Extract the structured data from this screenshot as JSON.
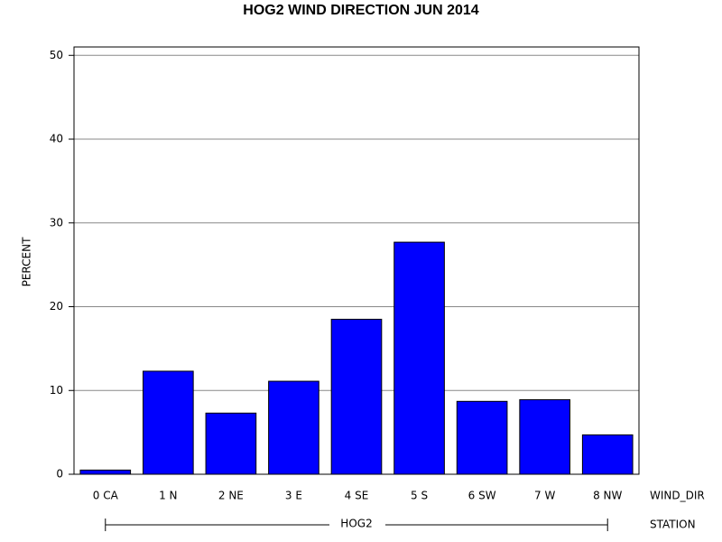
{
  "chart_data": {
    "type": "bar",
    "title": "HOG2 WIND DIRECTION JUN 2014",
    "categories": [
      "0 CA",
      "1 N",
      "2 NE",
      "3 E",
      "4 SE",
      "5 S",
      "6 SW",
      "7 W",
      "8 NW"
    ],
    "values": [
      0.5,
      12.3,
      7.3,
      11.1,
      18.5,
      27.7,
      8.7,
      8.9,
      4.7
    ],
    "color": "#0000ff",
    "ylim": [
      0,
      51
    ],
    "yticks": [
      0,
      10,
      20,
      30,
      40,
      50
    ],
    "grid": true,
    "ylabel": "PERCENT",
    "xlabel": "WIND_DIR",
    "group_label": "STATION",
    "group": "HOG2"
  }
}
